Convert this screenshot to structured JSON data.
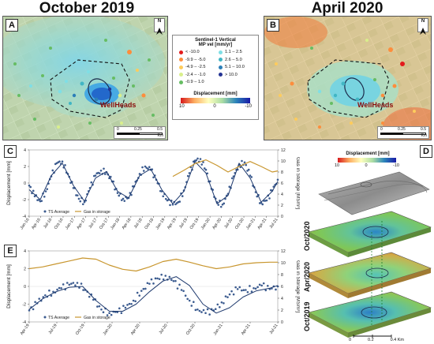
{
  "titles": {
    "left": "October 2019",
    "right": "April 2020"
  },
  "panels": {
    "a": "A",
    "b": "B",
    "c": "C",
    "d": "D",
    "e": "E"
  },
  "map": {
    "wellheads_label": "WellHeads",
    "north": "N",
    "scale_labels": [
      "0",
      "0.25",
      "0.5"
    ],
    "scale_unit": "Km"
  },
  "legend": {
    "title1": "Sentinel-1 Vertical",
    "title2": "MP vel [mm/yr]",
    "classes": [
      {
        "label": "< -10.0",
        "color": "#e31a1c"
      },
      {
        "label": "-9.9 – -5.0",
        "color": "#fd8d3c"
      },
      {
        "label": "-4.9 – -2.5",
        "color": "#fecc5c"
      },
      {
        "label": "-2.4 – -1.0",
        "color": "#d9ef8b"
      },
      {
        "label": "-0.9 – 1.0",
        "color": "#66bd63"
      },
      {
        "label": "1.1 – 2.5",
        "color": "#7fdfe6"
      },
      {
        "label": "2.6 – 5.0",
        "color": "#41b6c4"
      },
      {
        "label": "5.1 – 10.0",
        "color": "#2c7fb8"
      },
      {
        "label": "> 10.0",
        "color": "#253494"
      }
    ],
    "disp_title": "Displacement [mm]",
    "disp_ticks": [
      "10",
      "0",
      "-10"
    ]
  },
  "panel_d": {
    "colorbar_title": "Displacement [mm]",
    "colorbar_ticks": [
      "10",
      "0",
      "-10"
    ],
    "layers": [
      "Oct/2020",
      "Apr/2020",
      "Oct/2019"
    ],
    "scale_labels": [
      "0",
      "0.2",
      "0.4 Km"
    ]
  },
  "chart_data": [
    {
      "type": "line",
      "panel": "C",
      "ylabel": "Displacement [mm]",
      "y2label": "Gas in Storage [MSm³]",
      "ylim": [
        -4,
        4
      ],
      "y2lim": [
        0,
        12
      ],
      "yticks": [
        "-4",
        "-2",
        "0",
        "2",
        "4"
      ],
      "y2ticks": [
        "0",
        "2",
        "4",
        "6",
        "8",
        "10",
        "12"
      ],
      "xticks": [
        "Jan-16",
        "Apr-16",
        "Jul-16",
        "Oct-16",
        "Jan-17",
        "Apr-17",
        "Jul-17",
        "Oct-17",
        "Jan-18",
        "Apr-18",
        "Jul-18",
        "Oct-18",
        "Jan-19",
        "Apr-19",
        "Jul-19",
        "Oct-19",
        "Jan-20",
        "Apr-20",
        "Jul-20",
        "Oct-20",
        "Jan-21",
        "Apr-21",
        "Jul-21"
      ],
      "legend": [
        "TS Average",
        "Gas in storage"
      ],
      "series": [
        {
          "name": "TS Average",
          "kind": "scatter",
          "color": "#3b5b8f",
          "x": [
            0,
            0.5,
            1,
            1.5,
            2,
            2.5,
            3,
            3.5,
            4,
            4.5,
            5,
            5.5,
            6,
            6.5,
            7,
            7.5,
            8,
            8.5,
            9,
            9.5,
            10,
            10.5,
            11,
            11.5,
            12,
            12.5,
            13,
            13.5,
            14,
            14.5,
            15,
            15.5,
            16,
            16.5,
            17,
            17.5,
            18,
            18.5,
            19,
            19.5,
            20,
            20.5,
            21,
            21.5,
            22,
            22.5
          ],
          "y": [
            -0.3,
            -1.6,
            -2.2,
            -1.0,
            0.8,
            2.4,
            2.6,
            1.1,
            -0.6,
            -1.9,
            -2.3,
            -0.6,
            0.9,
            1.5,
            1.3,
            0.2,
            -1.2,
            -1.9,
            -1.8,
            -0.4,
            1.1,
            2.0,
            1.6,
            0.4,
            -1.0,
            -2.1,
            -2.6,
            -2.3,
            -0.9,
            1.2,
            2.7,
            2.9,
            1.6,
            -0.7,
            -2.3,
            -2.6,
            -1.3,
            0.8,
            2.2,
            2.5,
            0.9,
            -1.1,
            -2.4,
            -2.1,
            -0.9,
            0.4
          ]
        },
        {
          "name": "Model",
          "kind": "line",
          "color": "#1f3a6e",
          "x": [
            0,
            1,
            2,
            3,
            4,
            5,
            6,
            7,
            8,
            9,
            10,
            11,
            12,
            13,
            14,
            15,
            16,
            17,
            18,
            19,
            20,
            21,
            22,
            22.5
          ],
          "y": [
            -0.8,
            -2.0,
            0.9,
            2.4,
            -0.3,
            -2.2,
            0.6,
            1.4,
            -1.0,
            -1.8,
            0.9,
            1.7,
            -0.8,
            -2.5,
            -1.0,
            2.6,
            1.2,
            -2.5,
            -1.5,
            2.4,
            0.6,
            -2.3,
            -1.0,
            0.2
          ]
        },
        {
          "name": "Gas in storage",
          "kind": "line",
          "axis": "y2",
          "color": "#c8962e",
          "x": [
            13,
            14,
            15,
            16,
            17,
            18,
            19,
            20,
            21,
            22,
            22.5
          ],
          "y": [
            7.2,
            8.3,
            9.5,
            10.2,
            9.2,
            8.0,
            9.0,
            9.9,
            9.0,
            8.0,
            8.2
          ]
        }
      ]
    },
    {
      "type": "line",
      "panel": "E",
      "ylabel": "Displacement [mm]",
      "y2label": "Gas in Storage [MSm³]",
      "ylim": [
        -4,
        4
      ],
      "y2lim": [
        0,
        12
      ],
      "yticks": [
        "-4",
        "-2",
        "0",
        "2",
        "4"
      ],
      "y2ticks": [
        "0",
        "2",
        "4",
        "6",
        "8",
        "10",
        "12"
      ],
      "xticks": [
        "Apr-19",
        "Jul-19",
        "Oct-19",
        "Jan-20",
        "Apr-20",
        "Jul-20",
        "Oct-20",
        "Jan-21",
        "Apr-21",
        "Jul-21"
      ],
      "legend": [
        "TS Average",
        "Gas in storage"
      ],
      "series": [
        {
          "name": "TS Average",
          "kind": "scatter",
          "color": "#3b5b8f",
          "x": [
            0,
            0.3,
            0.6,
            0.9,
            1.2,
            1.5,
            1.8,
            2.1,
            2.4,
            2.7,
            3.0,
            3.3,
            3.6,
            3.9,
            4.2,
            4.5,
            4.8,
            5.1,
            5.4,
            5.7,
            6.0,
            6.3,
            6.6,
            6.9,
            7.2,
            7.5,
            7.8,
            8.1,
            8.4,
            8.7,
            9.0,
            9.3
          ],
          "y": [
            -2.7,
            -1.9,
            -1.0,
            -0.6,
            -0.2,
            0.2,
            0.4,
            -0.4,
            -1.5,
            -2.6,
            -3.0,
            -2.9,
            -2.4,
            -1.6,
            -0.5,
            0.3,
            0.9,
            1.2,
            0.6,
            -0.4,
            -1.6,
            -2.6,
            -3.0,
            -2.7,
            -1.8,
            -0.9,
            -0.3,
            -0.4,
            -0.2,
            0.1,
            -0.3,
            0.0
          ]
        },
        {
          "name": "Model",
          "kind": "line",
          "color": "#1f3a6e",
          "x": [
            0,
            0.5,
            1,
            1.5,
            2,
            2.5,
            3,
            3.5,
            4,
            4.5,
            5,
            5.5,
            6,
            6.5,
            7,
            7.5,
            8,
            8.5,
            9,
            9.3
          ],
          "y": [
            -2.6,
            -1.4,
            -0.6,
            -0.1,
            0.0,
            -1.6,
            -2.8,
            -2.8,
            -2.0,
            -0.6,
            0.6,
            1.1,
            0.1,
            -2.0,
            -3.0,
            -2.4,
            -1.2,
            -0.5,
            -0.2,
            0.1
          ]
        },
        {
          "name": "Gas in storage",
          "kind": "line",
          "axis": "y2",
          "color": "#c8962e",
          "x": [
            0,
            0.5,
            1,
            1.5,
            2,
            2.5,
            3,
            3.5,
            4,
            4.5,
            5,
            5.5,
            6,
            6.5,
            7,
            7.5,
            8,
            8.5,
            9,
            9.3
          ],
          "y": [
            9.0,
            9.3,
            9.8,
            10.3,
            10.8,
            10.6,
            9.6,
            8.9,
            8.6,
            9.3,
            10.2,
            10.6,
            10.1,
            9.5,
            9.0,
            9.3,
            9.8,
            10.0,
            10.1,
            10.1
          ]
        }
      ]
    }
  ]
}
